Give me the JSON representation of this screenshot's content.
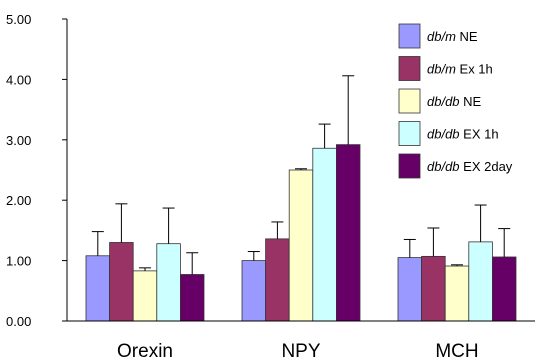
{
  "chart_data": {
    "type": "bar",
    "categories": [
      "Orexin",
      "NPY",
      "MCH"
    ],
    "ylim": [
      0,
      5
    ],
    "ytick_labels": [
      "0.00",
      "1.00",
      "2.00",
      "3.00",
      "4.00",
      "5.00"
    ],
    "legend_position": "top-right",
    "grid": false,
    "series": [
      {
        "name": "db/m NE",
        "name_italic": "db/m",
        "name_rest": " NE",
        "color": "#9999ff",
        "values": [
          1.08,
          1.0,
          1.05
        ],
        "errors": [
          0.4,
          0.15,
          0.3
        ]
      },
      {
        "name": "db/m Ex 1h",
        "name_italic": "db/m",
        "name_rest": " Ex 1h",
        "color": "#993366",
        "values": [
          1.3,
          1.36,
          1.07
        ],
        "errors": [
          0.64,
          0.28,
          0.47
        ]
      },
      {
        "name": "db/db NE",
        "name_italic": "db/db",
        "name_rest": " NE",
        "color": "#ffffcc",
        "values": [
          0.83,
          2.5,
          0.91
        ],
        "errors": [
          0.05,
          0.02,
          0.02
        ]
      },
      {
        "name": "db/db EX 1h",
        "name_italic": "db/db",
        "name_rest": " EX 1h",
        "color": "#ccffff",
        "values": [
          1.28,
          2.86,
          1.31
        ],
        "errors": [
          0.59,
          0.4,
          0.61
        ]
      },
      {
        "name": "db/db EX 2day",
        "name_italic": "db/db",
        "name_rest": " EX 2day",
        "color": "#660066",
        "values": [
          0.77,
          2.92,
          1.06
        ],
        "errors": [
          0.36,
          1.14,
          0.47
        ]
      }
    ]
  }
}
